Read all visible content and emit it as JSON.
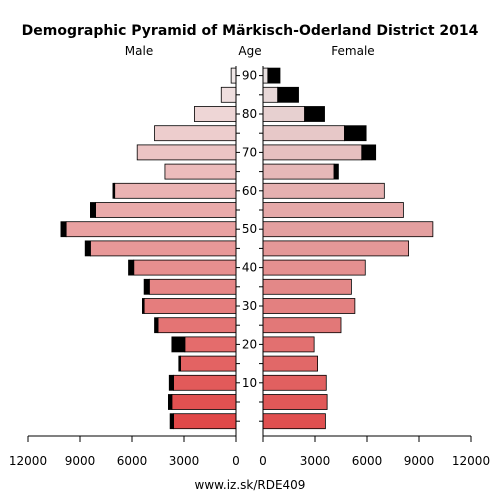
{
  "chart_data": {
    "type": "bar",
    "title": "Demographic Pyramid of Märkisch-Oderland District 2014",
    "left_label": "Male",
    "center_label": "Age",
    "right_label": "Female",
    "source": "www.iz.sk/RDE409",
    "age_groups": [
      "0-4",
      "5-9",
      "10-14",
      "15-19",
      "20-24",
      "25-29",
      "30-34",
      "35-39",
      "40-44",
      "45-49",
      "50-54",
      "55-59",
      "60-64",
      "65-69",
      "70-74",
      "75-79",
      "80-84",
      "85-89",
      "90+"
    ],
    "age_ticks": [
      10,
      20,
      30,
      40,
      50,
      60,
      70,
      80,
      90
    ],
    "x_ticks_left": [
      "12000",
      "9000",
      "6000",
      "3000",
      "0"
    ],
    "x_ticks_right": [
      "0",
      "3000",
      "6000",
      "9000",
      "12000"
    ],
    "xlim": [
      0,
      12000
    ],
    "series": [
      {
        "name": "Male",
        "values": [
          3800,
          3900,
          3850,
          3300,
          3700,
          4700,
          5400,
          5300,
          6200,
          8700,
          10100,
          8400,
          7100,
          4100,
          5700,
          4700,
          2400,
          850,
          280
        ]
      },
      {
        "name": "Female",
        "values": [
          3600,
          3700,
          3650,
          3150,
          2950,
          4500,
          5300,
          5100,
          5900,
          8400,
          9800,
          8100,
          7000,
          4350,
          6500,
          5950,
          3550,
          2050,
          980
        ]
      }
    ],
    "comparison_counterpart": {
      "male": [
        3600,
        3700,
        3600,
        3200,
        2950,
        4500,
        5300,
        5000,
        5900,
        8400,
        9800,
        8100,
        7000,
        4100,
        5700,
        4700,
        2400,
        850,
        280
      ],
      "female": [
        3800,
        3900,
        3850,
        3300,
        3700,
        4700,
        5400,
        5300,
        6200,
        8700,
        10100,
        8400,
        7100,
        4100,
        5700,
        4700,
        2400,
        850,
        280
      ]
    },
    "colors": {
      "male_young": "#e04848",
      "male_old": "#f0e8e8",
      "female_young": "#e05050",
      "female_old": "#e8e0e0",
      "excess": "#000000"
    }
  }
}
